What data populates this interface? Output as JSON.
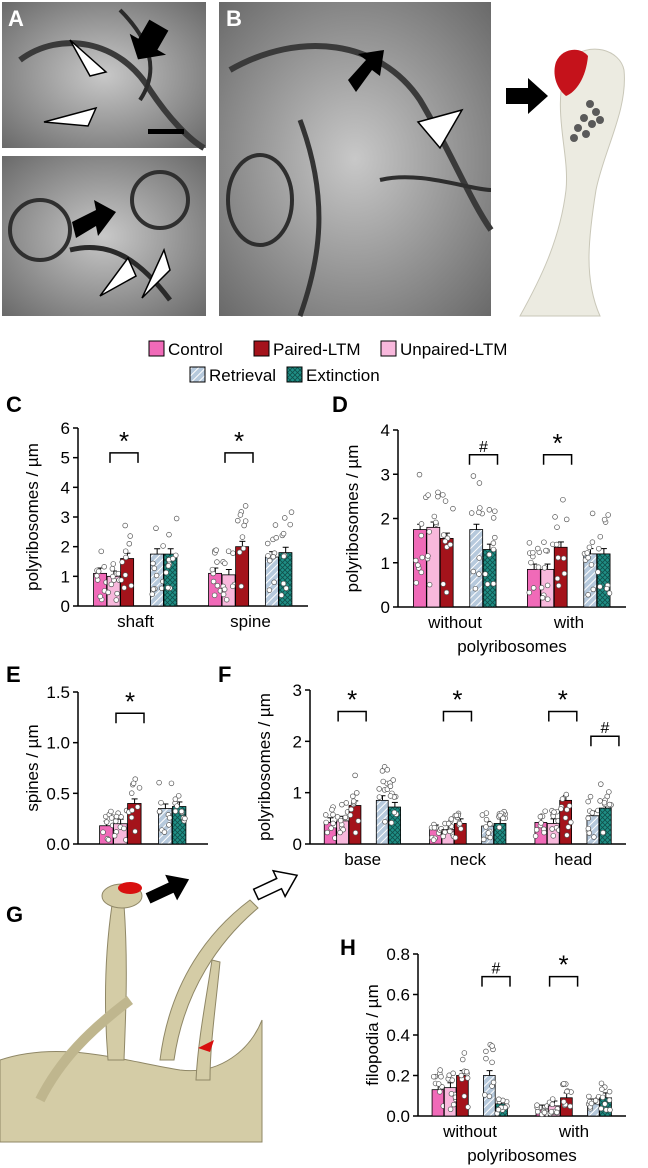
{
  "panel_letters": {
    "A": "A",
    "B": "B",
    "C": "C",
    "D": "D",
    "E": "E",
    "F": "F",
    "G": "G",
    "H": "H"
  },
  "legend": {
    "items": [
      {
        "label": "Control",
        "color": "#f06ab8",
        "pattern": "solid"
      },
      {
        "label": "Paired-LTM",
        "color": "#a4131b",
        "pattern": "solid"
      },
      {
        "label": "Unpaired-LTM",
        "color": "#f8b8dc",
        "pattern": "solid"
      },
      {
        "label": "Retrieval",
        "color": "#b6c9dc",
        "pattern": "hatch"
      },
      {
        "label": "Extinction",
        "color": "#1f8f86",
        "pattern": "cross"
      }
    ]
  },
  "colors": {
    "control": "#f06ab8",
    "paired": "#a4131b",
    "unpaired": "#f8b8dc",
    "retrieval": "#b6c9dc",
    "extinction": "#1f8f86"
  },
  "chart_data": [
    {
      "panel": "C",
      "type": "bar",
      "ylabel": "polyribosomes / µm",
      "ylim": [
        0,
        6
      ],
      "yticks": [
        "0",
        "1",
        "2",
        "3",
        "4",
        "5",
        "6"
      ],
      "categories": [
        "shaft",
        "spine"
      ],
      "series": [
        {
          "name": "Control",
          "values": [
            1.1,
            1.1
          ]
        },
        {
          "name": "Unpaired-LTM",
          "values": [
            1.0,
            1.05
          ]
        },
        {
          "name": "Paired-LTM",
          "values": [
            1.6,
            2.0
          ]
        },
        {
          "name": "Retrieval",
          "values": [
            1.75,
            1.65
          ]
        },
        {
          "name": "Extinction",
          "values": [
            1.75,
            1.8
          ]
        }
      ],
      "annotations": [
        "*",
        "*"
      ]
    },
    {
      "panel": "D",
      "type": "bar",
      "ylabel": "polyribosomes / µm",
      "ylim": [
        0,
        4
      ],
      "yticks": [
        "0",
        "1",
        "2",
        "3",
        "4"
      ],
      "categories": [
        "without",
        "with"
      ],
      "xlabel": "polyribosomes",
      "series": [
        {
          "name": "Control",
          "values": [
            1.75,
            0.85
          ]
        },
        {
          "name": "Unpaired-LTM",
          "values": [
            1.8,
            0.85
          ]
        },
        {
          "name": "Paired-LTM",
          "values": [
            1.55,
            1.35
          ]
        },
        {
          "name": "Retrieval",
          "values": [
            1.75,
            1.2
          ]
        },
        {
          "name": "Extinction",
          "values": [
            1.3,
            1.2
          ]
        }
      ],
      "annotations": [
        "#",
        "*"
      ]
    },
    {
      "panel": "E",
      "type": "bar",
      "ylabel": "spines / µm",
      "ylim": [
        0,
        1.5
      ],
      "yticks": [
        "0.0",
        "0.5",
        "1.0",
        "1.5"
      ],
      "categories": [
        ""
      ],
      "series": [
        {
          "name": "Control",
          "values": [
            0.18
          ]
        },
        {
          "name": "Unpaired-LTM",
          "values": [
            0.2
          ]
        },
        {
          "name": "Paired-LTM",
          "values": [
            0.4
          ]
        },
        {
          "name": "Retrieval",
          "values": [
            0.35
          ]
        },
        {
          "name": "Extinction",
          "values": [
            0.37
          ]
        }
      ],
      "annotations": [
        "*"
      ]
    },
    {
      "panel": "F",
      "type": "bar",
      "ylabel": "polyribosomes / µm",
      "ylim": [
        0,
        3
      ],
      "yticks": [
        "0",
        "1",
        "2",
        "3"
      ],
      "categories": [
        "base",
        "neck",
        "head"
      ],
      "series": [
        {
          "name": "Control",
          "values": [
            0.42,
            0.28,
            0.42
          ]
        },
        {
          "name": "Unpaired-LTM",
          "values": [
            0.45,
            0.28,
            0.4
          ]
        },
        {
          "name": "Paired-LTM",
          "values": [
            0.75,
            0.4,
            0.85
          ]
        },
        {
          "name": "Retrieval",
          "values": [
            0.85,
            0.35,
            0.55
          ]
        },
        {
          "name": "Extinction",
          "values": [
            0.72,
            0.4,
            0.7
          ]
        }
      ],
      "annotations": [
        "*",
        "*",
        "*",
        "#"
      ]
    },
    {
      "panel": "H",
      "type": "bar",
      "ylabel": "filopodia / µm",
      "ylim": [
        0,
        0.8
      ],
      "yticks": [
        "0.0",
        "0.2",
        "0.4",
        "0.6",
        "0.8"
      ],
      "categories": [
        "without",
        "with"
      ],
      "xlabel": "polyribosomes",
      "series": [
        {
          "name": "Control",
          "values": [
            0.13,
            0.03
          ]
        },
        {
          "name": "Unpaired-LTM",
          "values": [
            0.14,
            0.05
          ]
        },
        {
          "name": "Paired-LTM",
          "values": [
            0.2,
            0.09
          ]
        },
        {
          "name": "Retrieval",
          "values": [
            0.2,
            0.06
          ]
        },
        {
          "name": "Extinction",
          "values": [
            0.06,
            0.09
          ]
        }
      ],
      "annotations": [
        "#",
        "*"
      ]
    }
  ]
}
